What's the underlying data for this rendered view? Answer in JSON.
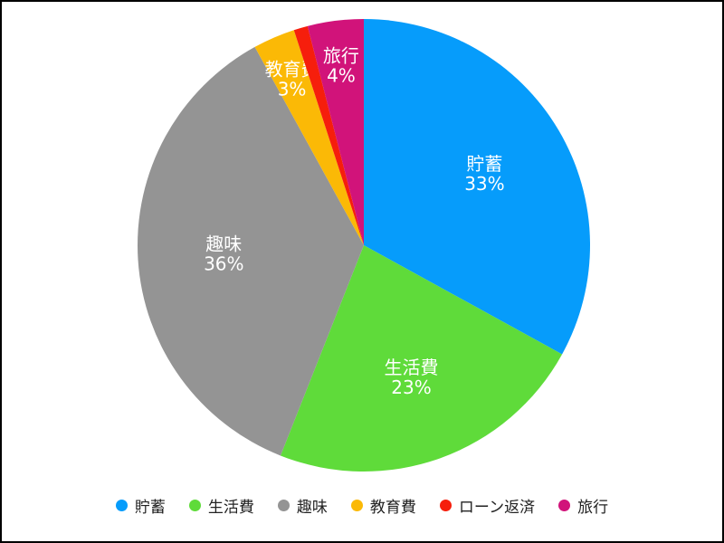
{
  "chart_data": {
    "type": "pie",
    "title": "",
    "legend_position": "bottom",
    "slices": [
      {
        "name": "貯蓄",
        "value": 33,
        "label": "33%",
        "color": "#069cfb"
      },
      {
        "name": "生活費",
        "value": 23,
        "label": "23%",
        "color": "#5fdb3a"
      },
      {
        "name": "趣味",
        "value": 36,
        "label": "36%",
        "color": "#949494"
      },
      {
        "name": "教育費",
        "value": 3,
        "label": "3%",
        "color": "#fbb906"
      },
      {
        "name": "ローン返済",
        "value": 1,
        "label": "",
        "color": "#f61e0c"
      },
      {
        "name": "旅行",
        "value": 4,
        "label": "4%",
        "color": "#d1137a"
      }
    ]
  }
}
